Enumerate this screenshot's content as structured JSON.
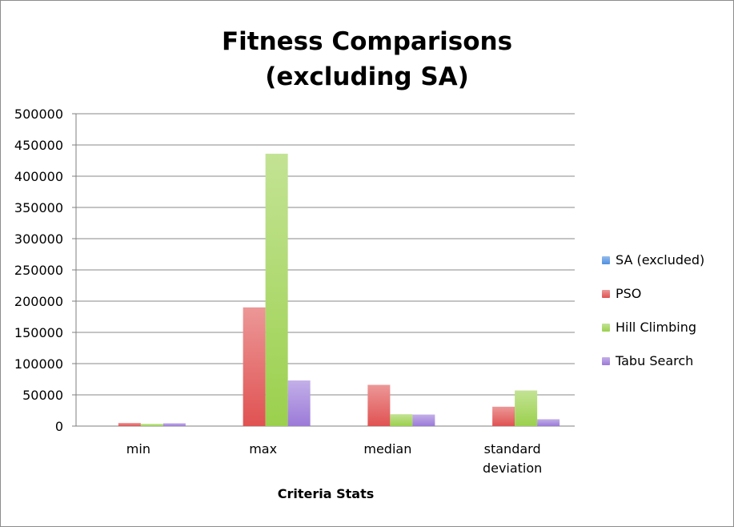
{
  "chart_data": {
    "type": "bar",
    "title_line1": "Fitness Comparisons",
    "title_line2": "(excluding SA)",
    "xlabel": "Criteria Stats",
    "ylabel": "",
    "ylim": [
      0,
      500000
    ],
    "yticks": [
      0,
      50000,
      100000,
      150000,
      200000,
      250000,
      300000,
      350000,
      400000,
      450000,
      500000
    ],
    "grid": true,
    "legend_position": "right",
    "categories": [
      [
        "min"
      ],
      [
        "max"
      ],
      [
        "median"
      ],
      [
        "standard",
        "deviation"
      ]
    ],
    "series": [
      {
        "name": "SA (excluded)",
        "color": "#4f8fe0",
        "values": [
          0,
          0,
          0,
          0
        ]
      },
      {
        "name": "PSO",
        "color": "#e05252",
        "values": [
          5000,
          190000,
          66000,
          31000
        ]
      },
      {
        "name": "Hill Climbing",
        "color": "#9bd04d",
        "values": [
          3500,
          436000,
          19000,
          57000
        ]
      },
      {
        "name": "Tabu Search",
        "color": "#9b7ad8",
        "values": [
          4500,
          73000,
          18500,
          11000
        ]
      }
    ]
  }
}
